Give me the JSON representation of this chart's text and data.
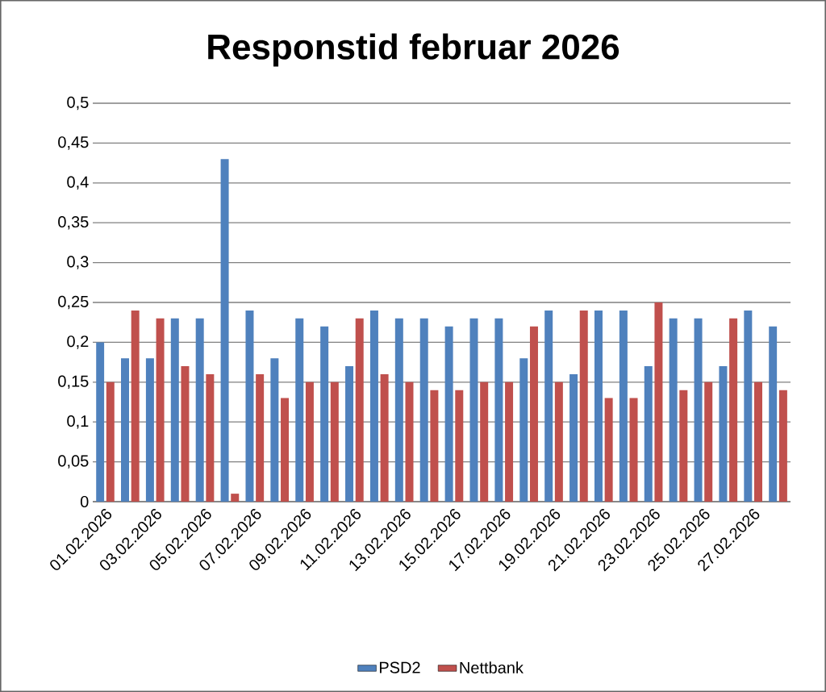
{
  "chart_data": {
    "type": "bar",
    "title": "Responstid februar 2026",
    "categories": [
      "01.02.2026",
      null,
      "03.02.2026",
      null,
      "05.02.2026",
      null,
      "07.02.2026",
      null,
      "09.02.2026",
      null,
      "11.02.2026",
      null,
      "13.02.2026",
      null,
      "15.02.2026",
      null,
      "17.02.2026",
      null,
      "19.02.2026",
      null,
      "21.02.2026",
      null,
      "23.02.2026",
      null,
      "25.02.2026",
      null,
      "27.02.2026",
      null
    ],
    "series": [
      {
        "name": "PSD2",
        "color": "#4f81bd",
        "values": [
          0.2,
          0.18,
          0.18,
          0.23,
          0.23,
          0.43,
          0.24,
          0.18,
          0.23,
          0.22,
          0.17,
          0.24,
          0.23,
          0.23,
          0.22,
          0.23,
          0.23,
          0.18,
          0.24,
          0.16,
          0.24,
          0.24,
          0.17,
          0.23,
          0.23,
          0.17,
          0.24,
          0.22
        ]
      },
      {
        "name": "Nettbank",
        "color": "#c0504d",
        "values": [
          0.15,
          0.24,
          0.23,
          0.17,
          0.16,
          0.01,
          0.16,
          0.13,
          0.15,
          0.15,
          0.23,
          0.16,
          0.15,
          0.14,
          0.14,
          0.15,
          0.15,
          0.22,
          0.15,
          0.24,
          0.13,
          0.13,
          0.25,
          0.14,
          0.15,
          0.23,
          0.15,
          0.14
        ]
      }
    ],
    "ylim": [
      0,
      0.5
    ],
    "yticks": [
      0,
      {
        "value": 0.05,
        "label": "0,05"
      },
      {
        "value": 0.1,
        "label": "0,1"
      },
      {
        "value": 0.15,
        "label": "0,15"
      },
      {
        "value": 0.2,
        "label": "0,2"
      },
      {
        "value": 0.25,
        "label": "0,25"
      },
      {
        "value": 0.3,
        "label": "0,3"
      },
      {
        "value": 0.35,
        "label": "0,35"
      },
      {
        "value": 0.4,
        "label": "0,4"
      },
      {
        "value": 0.45,
        "label": "0,45"
      },
      {
        "value": 0.5,
        "label": "0,5"
      }
    ],
    "grid": "y",
    "legend": "bottom"
  }
}
